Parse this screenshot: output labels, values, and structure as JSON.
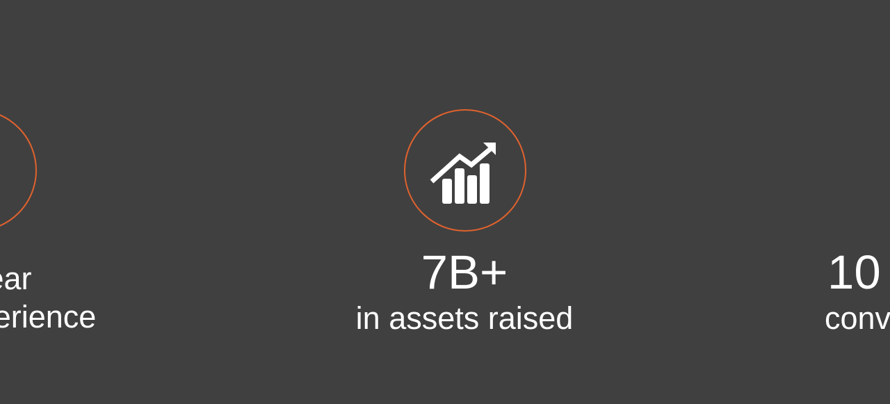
{
  "colors": {
    "background": "#404040",
    "accent": "#e0622e",
    "text": "#ffffff"
  },
  "stats": [
    {
      "value": "",
      "caption_line1": "ear",
      "caption_line2": "perience",
      "icon": "partial-circle-icon"
    },
    {
      "value": "7B+",
      "caption_line1": "in assets raised",
      "icon": "growth-chart-icon"
    },
    {
      "value": "10",
      "caption_line1": "conv",
      "icon": ""
    }
  ]
}
